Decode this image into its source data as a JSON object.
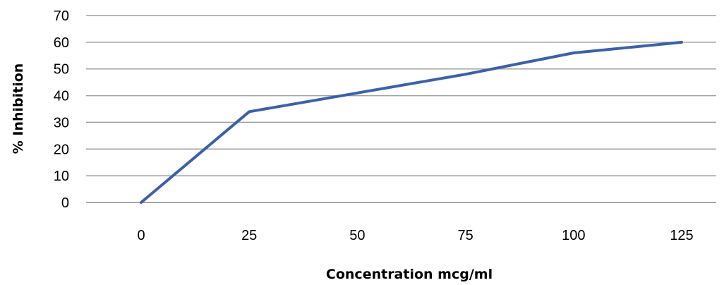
{
  "chart_data": {
    "type": "line",
    "title": "",
    "xlabel": "Concentration mcg/ml",
    "ylabel": "% Inhibition",
    "categories": [
      "0",
      "25",
      "50",
      "75",
      "100",
      "125"
    ],
    "series": [
      {
        "values": [
          0,
          34,
          41,
          48,
          56,
          60
        ]
      }
    ],
    "ylim": [
      0,
      70
    ],
    "yticks": [
      "0",
      "10",
      "20",
      "30",
      "40",
      "50",
      "60",
      "70"
    ],
    "grid": true,
    "legend": "none",
    "colors": {
      "series": "#3a62a8"
    }
  }
}
